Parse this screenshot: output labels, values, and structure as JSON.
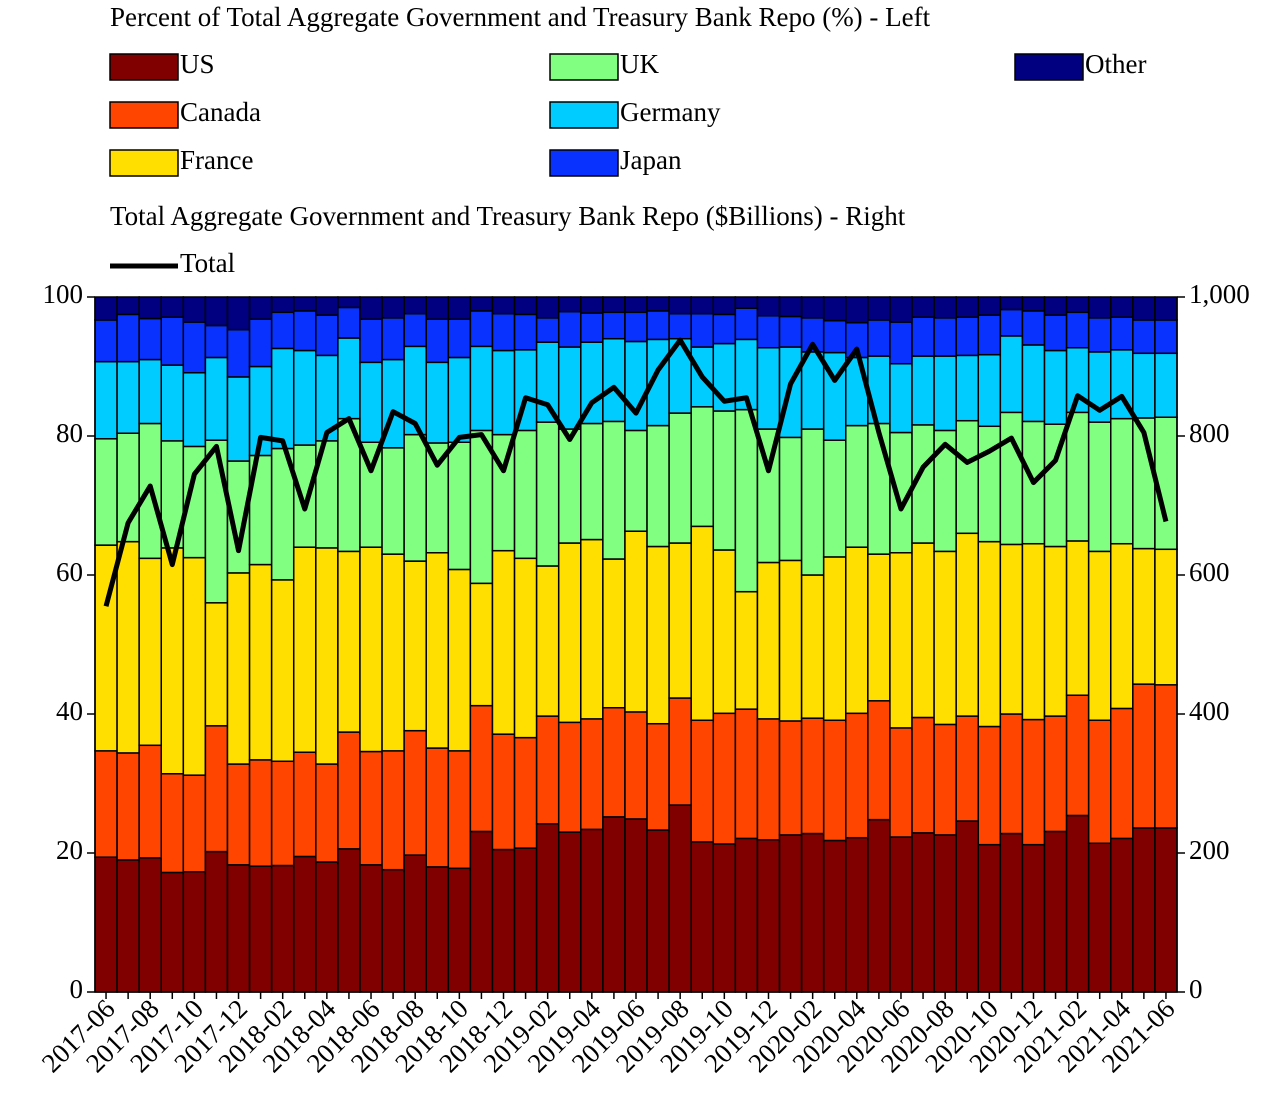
{
  "chart_data": {
    "type": "bar",
    "stacked": true,
    "title": "Percent of Total Aggregate Government and Treasury Bank Repo (%) - Left",
    "subtitle": "Total Aggregate Government and Treasury Bank Repo ($Billions) - Right",
    "categories": [
      "2017-06",
      null,
      "2017-08",
      null,
      "2017-10",
      null,
      "2017-12",
      null,
      "2018-02",
      null,
      "2018-04",
      null,
      "2018-06",
      null,
      "2018-08",
      null,
      "2018-10",
      null,
      "2018-12",
      null,
      "2019-02",
      null,
      "2019-04",
      null,
      "2019-06",
      null,
      "2019-08",
      null,
      "2019-10",
      null,
      "2019-12",
      null,
      "2020-02",
      null,
      "2020-04",
      null,
      "2020-06",
      null,
      "2020-08",
      null,
      "2020-10",
      null,
      "2020-12",
      null,
      "2021-02",
      null,
      "2021-04",
      null,
      "2021-06"
    ],
    "series": [
      {
        "name": "US",
        "color": "#800000",
        "values": [
          19.4,
          19.0,
          19.3,
          17.2,
          17.3,
          20.2,
          18.3,
          18.1,
          18.2,
          19.5,
          18.7,
          20.6,
          18.3,
          17.6,
          19.7,
          18.0,
          17.8,
          23.1,
          20.5,
          20.7,
          24.2,
          23.0,
          23.4,
          25.2,
          24.9,
          23.3,
          26.9,
          21.6,
          21.3,
          22.1,
          21.9,
          22.6,
          22.8,
          21.8,
          22.2,
          24.8,
          22.3,
          22.9,
          22.6,
          24.6,
          21.2,
          22.8,
          21.2,
          23.1,
          25.4,
          21.4,
          22.1,
          23.6,
          23.6
        ]
      },
      {
        "name": "Canada",
        "color": "#ff4500",
        "values": [
          15.3,
          15.4,
          16.2,
          14.2,
          13.9,
          18.1,
          14.5,
          15.3,
          15.0,
          15.0,
          14.1,
          16.8,
          16.3,
          17.1,
          17.9,
          17.1,
          16.9,
          18.1,
          16.6,
          15.9,
          15.5,
          15.8,
          15.9,
          15.7,
          15.4,
          15.3,
          15.4,
          17.5,
          18.8,
          18.6,
          17.4,
          16.4,
          16.6,
          17.3,
          17.9,
          17.1,
          15.7,
          16.6,
          15.9,
          15.1,
          17.0,
          17.2,
          18.0,
          16.6,
          17.3,
          17.7,
          18.7,
          20.7,
          20.6
        ]
      },
      {
        "name": "France",
        "color": "#ffdf00",
        "values": [
          29.6,
          30.4,
          26.9,
          32.5,
          31.3,
          17.7,
          27.5,
          28.1,
          26.1,
          29.5,
          31.1,
          26.0,
          29.4,
          28.3,
          24.4,
          28.1,
          26.1,
          17.6,
          26.4,
          25.8,
          21.6,
          25.8,
          25.8,
          21.4,
          26.0,
          25.5,
          22.3,
          27.9,
          23.5,
          16.9,
          22.5,
          23.1,
          20.6,
          23.5,
          23.9,
          21.1,
          25.2,
          25.1,
          24.9,
          26.3,
          26.6,
          24.4,
          25.3,
          24.4,
          22.2,
          24.3,
          23.7,
          19.5,
          19.5
        ]
      },
      {
        "name": "UK",
        "color": "#80ff80",
        "values": [
          15.3,
          15.6,
          19.4,
          15.4,
          16.0,
          23.4,
          16.1,
          15.7,
          18.9,
          14.7,
          15.4,
          19.1,
          15.1,
          15.3,
          18.2,
          15.8,
          18.3,
          22.0,
          16.7,
          18.4,
          20.7,
          16.4,
          16.7,
          19.8,
          14.5,
          17.4,
          18.7,
          17.2,
          20.0,
          26.2,
          19.2,
          17.7,
          21.0,
          16.8,
          17.5,
          18.8,
          17.3,
          17.0,
          17.4,
          16.2,
          16.6,
          19.0,
          17.6,
          17.6,
          18.5,
          18.6,
          18.0,
          18.8,
          19.0
        ]
      },
      {
        "name": "Germany",
        "color": "#00ccff",
        "values": [
          11.1,
          10.3,
          9.2,
          10.9,
          10.6,
          11.9,
          12.1,
          12.8,
          14.4,
          13.6,
          12.3,
          11.6,
          11.5,
          12.7,
          12.7,
          11.6,
          12.2,
          12.1,
          12.1,
          11.6,
          11.5,
          11.8,
          11.7,
          11.9,
          12.8,
          12.4,
          10.7,
          8.6,
          9.7,
          10.1,
          11.7,
          13.0,
          11.1,
          12.6,
          9.8,
          9.7,
          9.9,
          9.9,
          10.7,
          9.4,
          10.3,
          11.0,
          11.0,
          10.6,
          9.3,
          10.1,
          9.9,
          9.3,
          9.2
        ]
      },
      {
        "name": "Japan",
        "color": "#0a32ff",
        "values": [
          6.0,
          6.8,
          5.9,
          6.9,
          7.3,
          4.6,
          6.8,
          6.8,
          5.2,
          5.7,
          5.8,
          4.4,
          6.2,
          6.0,
          4.7,
          6.2,
          5.5,
          5.1,
          5.3,
          5.1,
          3.5,
          5.1,
          4.2,
          3.8,
          4.2,
          4.1,
          3.6,
          4.8,
          4.2,
          4.5,
          4.6,
          4.4,
          4.9,
          4.6,
          5.0,
          5.2,
          6.0,
          5.6,
          5.5,
          5.5,
          5.7,
          3.8,
          4.9,
          5.1,
          5.1,
          4.9,
          4.7,
          4.8,
          4.8
        ]
      },
      {
        "name": "Other",
        "color": "#000080",
        "values": [
          3.3,
          2.5,
          3.1,
          2.9,
          3.6,
          4.1,
          4.7,
          3.2,
          2.2,
          2.0,
          2.6,
          1.5,
          3.2,
          3.0,
          2.4,
          3.2,
          3.2,
          2.0,
          2.4,
          2.5,
          3.0,
          2.1,
          2.3,
          2.2,
          2.2,
          2.0,
          2.4,
          2.4,
          2.5,
          1.6,
          2.7,
          2.8,
          3.0,
          3.4,
          3.7,
          3.3,
          3.6,
          2.9,
          3.0,
          2.9,
          2.6,
          1.8,
          2.0,
          2.6,
          2.2,
          3.0,
          2.9,
          3.3,
          3.3
        ]
      },
      {
        "name": "Total",
        "type": "line",
        "axis": "y2",
        "color": "#000000",
        "values": [
          555,
          675,
          728,
          615,
          745,
          785,
          635,
          798,
          793,
          695,
          805,
          825,
          750,
          835,
          818,
          758,
          798,
          802,
          750,
          855,
          845,
          795,
          848,
          870,
          833,
          895,
          938,
          885,
          850,
          855,
          750,
          875,
          932,
          880,
          925,
          805,
          695,
          755,
          788,
          762,
          778,
          797,
          733,
          765,
          858,
          837,
          857,
          805,
          677
        ]
      }
    ],
    "ylim": [
      0,
      100
    ],
    "yticks": [
      0,
      20,
      40,
      60,
      80,
      100
    ],
    "y2lim": [
      0,
      1000
    ],
    "y2ticks": [
      0,
      200,
      400,
      600,
      800,
      {
        "value": 1000,
        "label": "1,000"
      }
    ]
  }
}
